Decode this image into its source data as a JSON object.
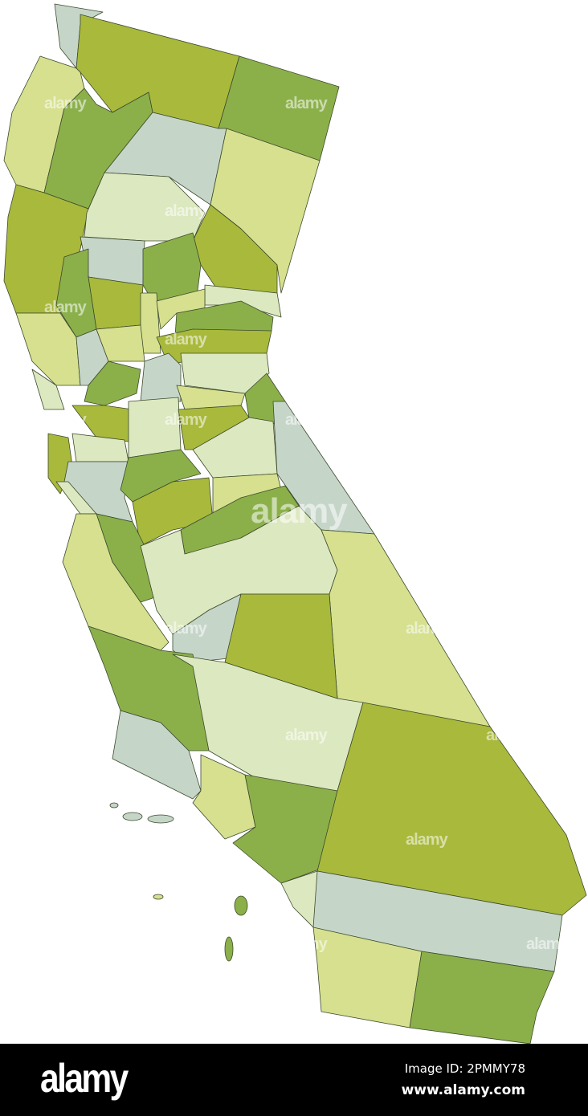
{
  "map": {
    "subject": "California counties",
    "palette": {
      "green": "#8bb04a",
      "olive": "#a9b93c",
      "light": "#d6e08f",
      "pale": "#dce8bf",
      "grey": "#c5d6c9",
      "border": "#3d4a2c"
    }
  },
  "watermark": {
    "text": "alamy"
  },
  "footer": {
    "logo": "alamy",
    "image_id": "Image ID: 2PMMY78",
    "site": "www.alamy.com"
  }
}
